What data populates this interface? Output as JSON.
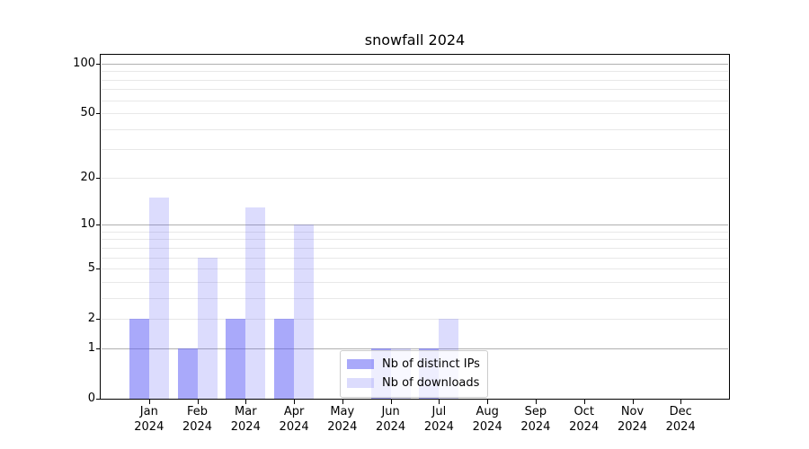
{
  "chart_data": {
    "type": "bar",
    "title": "snowfall 2024",
    "categories": [
      "Jan",
      "Feb",
      "Mar",
      "Apr",
      "May",
      "Jun",
      "Jul",
      "Aug",
      "Sep",
      "Oct",
      "Nov",
      "Dec"
    ],
    "x_year_label": "2024",
    "series": [
      {
        "name": "Nb of distinct IPs",
        "color": "rgba(90,90,245,0.52)",
        "values": [
          2,
          1,
          2,
          2,
          0,
          1,
          1,
          0,
          0,
          0,
          0,
          0
        ]
      },
      {
        "name": "Nb of downloads",
        "color": "rgba(90,90,245,0.21)",
        "values": [
          15,
          6,
          13,
          10,
          0,
          1,
          2,
          0,
          0,
          0,
          0,
          0
        ]
      }
    ],
    "y_axis": {
      "scale": "log10(1+v)",
      "tick_values": [
        0,
        1,
        2,
        5,
        10,
        20,
        50,
        100
      ],
      "tick_labels": [
        "0",
        "1",
        "2",
        "5",
        "10",
        "20",
        "50",
        "100"
      ],
      "major_gridlines": [
        1,
        10,
        100
      ],
      "minor_gridlines": [
        2,
        3,
        4,
        5,
        6,
        7,
        8,
        9,
        20,
        30,
        40,
        50,
        60,
        70,
        80,
        90
      ],
      "ylim": [
        0,
        113
      ]
    },
    "grid": true,
    "legend": {
      "position": "lower-center"
    }
  },
  "colors": {
    "grid_major": "#b0b0b0",
    "grid_minor": "#e8e8e8",
    "spine": "#000000",
    "text": "#000000",
    "legend_border": "#cccccc"
  }
}
